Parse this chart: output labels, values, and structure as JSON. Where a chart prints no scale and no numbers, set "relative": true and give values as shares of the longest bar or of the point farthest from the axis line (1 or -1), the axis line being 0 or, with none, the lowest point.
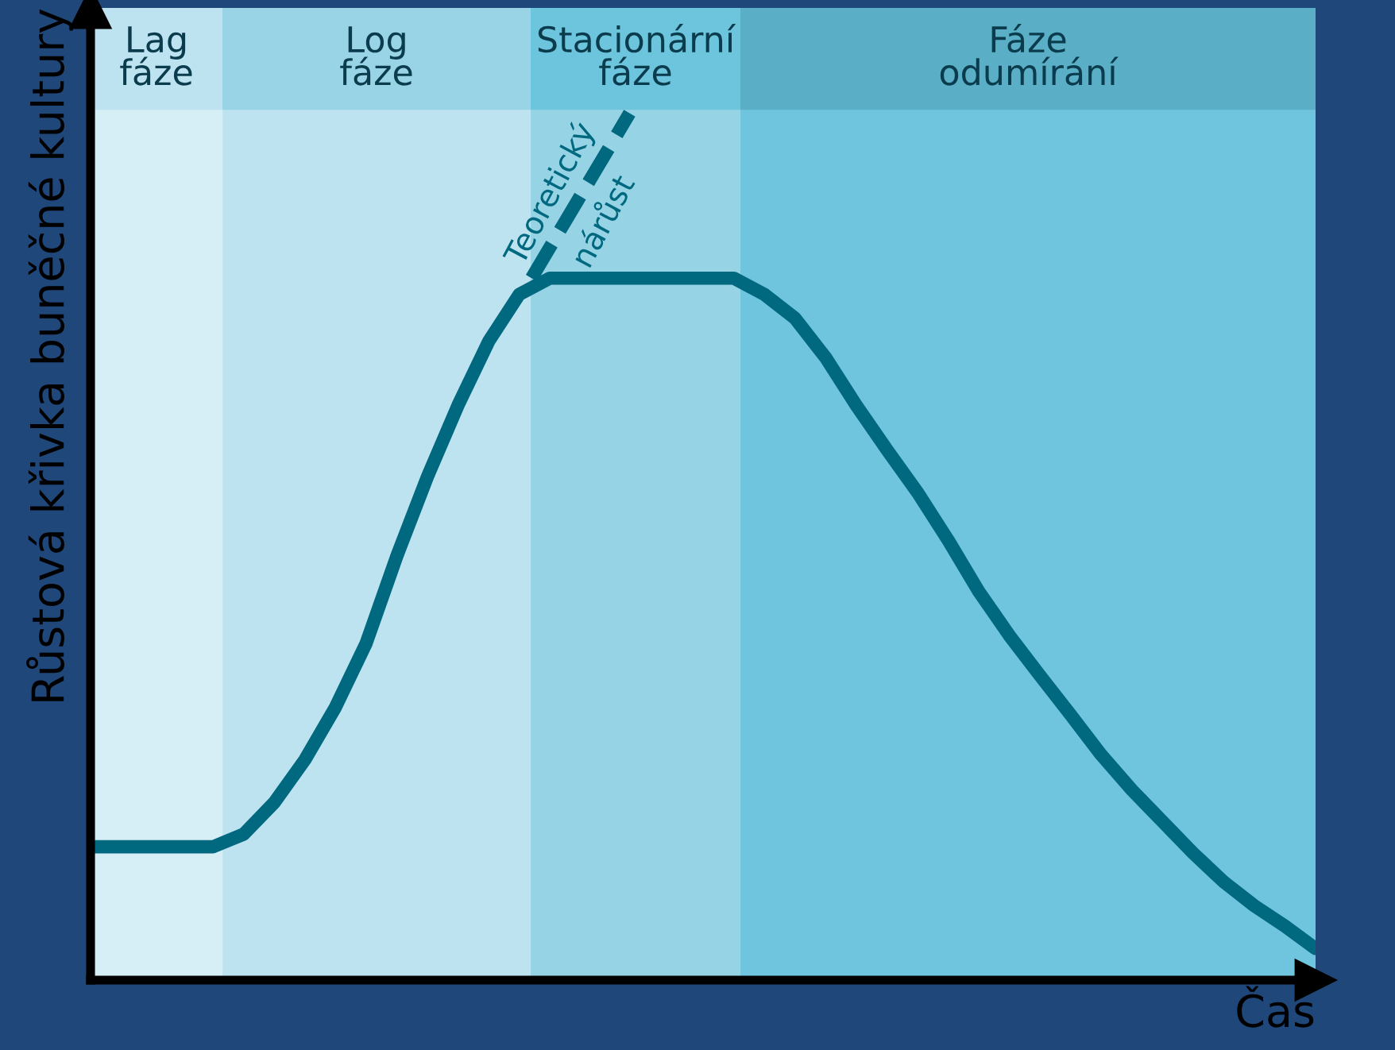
{
  "chart_data": {
    "type": "line",
    "relative": true,
    "ylabel": "Růstová křivka buněčné kultury",
    "xlabel": "Čas",
    "categories": [
      null,
      null,
      null,
      null,
      null,
      null,
      null,
      null,
      null,
      null,
      null,
      null,
      null,
      null,
      null,
      null,
      null,
      null,
      null,
      null,
      null,
      null,
      null,
      null,
      null,
      null,
      null,
      null,
      null,
      null,
      null,
      null,
      null,
      null,
      null,
      null,
      null,
      null,
      null,
      null,
      null
    ],
    "series": [
      {
        "color": "#00687f",
        "values": [
          0.19,
          0.19,
          0.19,
          0.19,
          0.19,
          0.208,
          0.253,
          0.314,
          0.389,
          0.48,
          0.604,
          0.717,
          0.819,
          0.91,
          0.977,
          1.0,
          1.0,
          1.0,
          1.0,
          1.0,
          1.0,
          1.0,
          0.977,
          0.943,
          0.887,
          0.819,
          0.756,
          0.695,
          0.627,
          0.554,
          0.491,
          0.434,
          0.378,
          0.321,
          0.271,
          0.226,
          0.181,
          0.14,
          0.106,
          0.077,
          0.045
        ]
      }
    ],
    "annotations": [
      "Lag\nfáze",
      "Log\nfáze",
      "Stacionární\nfáze",
      "Fáze\nodumírání",
      "Teoretický\nnárůst"
    ]
  }
}
